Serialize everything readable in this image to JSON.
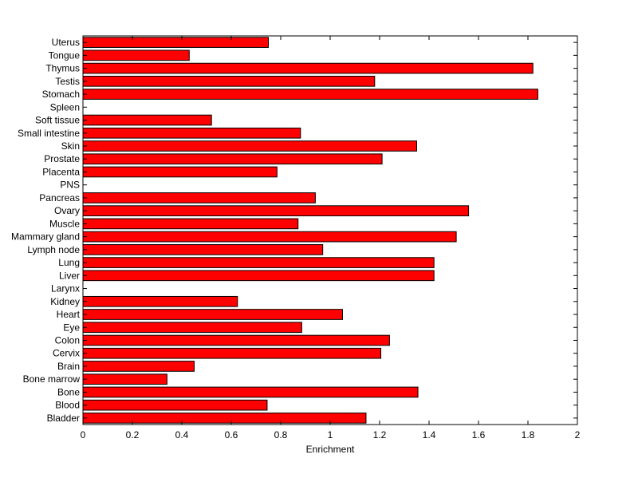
{
  "chart_data": {
    "type": "bar",
    "orientation": "horizontal",
    "title": "",
    "xlabel": "Enrichment",
    "ylabel": "",
    "xlim": [
      0,
      2
    ],
    "x_ticks": [
      "0",
      "0.2",
      "0.4",
      "0.6",
      "0.8",
      "1",
      "1.2",
      "1.4",
      "1.6",
      "1.8",
      "2"
    ],
    "grid": false,
    "legend": "none",
    "bar_color": "#ff0000",
    "bar_edge_color": "#000000",
    "categories": [
      "Bladder",
      "Blood",
      "Bone",
      "Bone marrow",
      "Brain",
      "Cervix",
      "Colon",
      "Eye",
      "Heart",
      "Kidney",
      "Larynx",
      "Liver",
      "Lung",
      "Lymph node",
      "Mammary gland",
      "Muscle",
      "Ovary",
      "Pancreas",
      "PNS",
      "Placenta",
      "Prostate",
      "Skin",
      "Small intestine",
      "Soft tissue",
      "Spleen",
      "Stomach",
      "Testis",
      "Thymus",
      "Tongue",
      "Uterus"
    ],
    "values": [
      1.145,
      0.745,
      1.355,
      0.34,
      0.45,
      1.205,
      1.24,
      0.885,
      1.05,
      0.625,
      0,
      1.42,
      1.42,
      0.97,
      1.51,
      0.87,
      1.56,
      0.94,
      0,
      0.785,
      1.21,
      1.35,
      0.88,
      0.52,
      0,
      1.84,
      1.18,
      1.82,
      0.43,
      0.75
    ]
  }
}
